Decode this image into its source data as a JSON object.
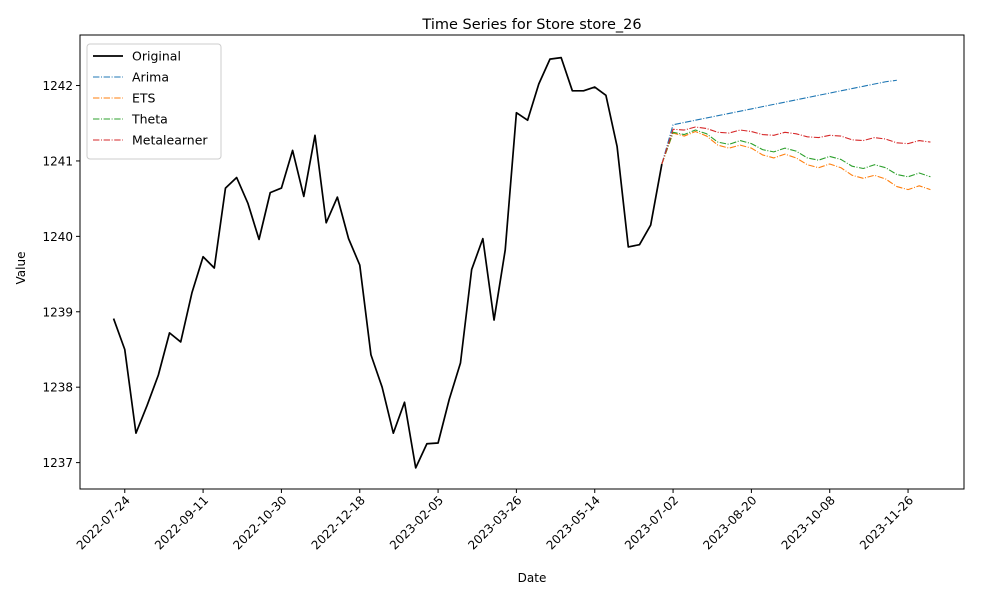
{
  "chart_data": {
    "type": "line",
    "title": "Time Series for Store store_26",
    "xlabel": "Date",
    "ylabel": "Value",
    "xlim": [
      "2022-06-26",
      "2023-12-31"
    ],
    "ylim": [
      1236.65,
      1242.67
    ],
    "x_ticks": [
      "2022-07-24",
      "2022-09-11",
      "2022-10-30",
      "2022-12-18",
      "2023-02-05",
      "2023-03-26",
      "2023-05-14",
      "2023-07-02",
      "2023-08-20",
      "2023-10-08",
      "2023-11-26"
    ],
    "y_ticks": [
      1237,
      1238,
      1239,
      1240,
      1241,
      1242
    ],
    "grid": false,
    "legend_position": "top-left",
    "series": [
      {
        "name": "Original",
        "color": "#000000",
        "dash": "solid",
        "start": "2022-07-17",
        "step_days": 7,
        "values": [
          1238.91,
          1238.5,
          1237.39,
          1237.76,
          1238.16,
          1238.72,
          1238.6,
          1239.25,
          1239.73,
          1239.58,
          1240.64,
          1240.78,
          1240.44,
          1239.96,
          1240.58,
          1240.64,
          1241.14,
          1240.53,
          1241.34,
          1240.18,
          1240.52,
          1239.97,
          1239.62,
          1238.43,
          1238.0,
          1237.39,
          1237.8,
          1236.93,
          1237.25,
          1237.26,
          1237.84,
          1238.32,
          1239.56,
          1239.97,
          1238.89,
          1239.82,
          1241.64,
          1241.54,
          1242.02,
          1242.35,
          1242.37,
          1241.93,
          1241.93,
          1241.98,
          1241.87,
          1241.19,
          1239.86,
          1239.89,
          1240.15,
          1240.96
        ]
      },
      {
        "name": "Arima",
        "color": "#1f77b4",
        "dash": "dashdot",
        "start": "2023-06-25",
        "step_days": 7,
        "values": [
          1240.96,
          1241.48,
          1241.51,
          1241.54,
          1241.57,
          1241.6,
          1241.63,
          1241.66,
          1241.69,
          1241.72,
          1241.75,
          1241.78,
          1241.81,
          1241.84,
          1241.87,
          1241.9,
          1241.93,
          1241.96,
          1241.99,
          1242.02,
          1242.05,
          1242.07
        ]
      },
      {
        "name": "ETS",
        "color": "#ff7f0e",
        "dash": "dashdot",
        "start": "2023-06-25",
        "step_days": 7,
        "values": [
          1240.96,
          1241.37,
          1241.33,
          1241.39,
          1241.33,
          1241.21,
          1241.17,
          1241.21,
          1241.17,
          1241.08,
          1241.04,
          1241.09,
          1241.04,
          1240.95,
          1240.91,
          1240.96,
          1240.91,
          1240.81,
          1240.77,
          1240.81,
          1240.76,
          1240.66,
          1240.62,
          1240.67,
          1240.62
        ]
      },
      {
        "name": "Theta",
        "color": "#2ca02c",
        "dash": "dashdot",
        "start": "2023-06-25",
        "step_days": 7,
        "values": [
          1240.96,
          1241.38,
          1241.35,
          1241.41,
          1241.36,
          1241.25,
          1241.22,
          1241.27,
          1241.23,
          1241.15,
          1241.12,
          1241.17,
          1241.13,
          1241.04,
          1241.01,
          1241.06,
          1241.02,
          1240.93,
          1240.9,
          1240.95,
          1240.91,
          1240.82,
          1240.79,
          1240.84,
          1240.79
        ]
      },
      {
        "name": "Metalearner",
        "color": "#d62728",
        "dash": "dashdot",
        "start": "2023-06-25",
        "step_days": 7,
        "values": [
          1240.96,
          1241.42,
          1241.41,
          1241.45,
          1241.43,
          1241.38,
          1241.37,
          1241.41,
          1241.39,
          1241.35,
          1241.34,
          1241.38,
          1241.36,
          1241.32,
          1241.31,
          1241.34,
          1241.33,
          1241.28,
          1241.27,
          1241.31,
          1241.29,
          1241.24,
          1241.23,
          1241.27,
          1241.25
        ]
      }
    ]
  }
}
